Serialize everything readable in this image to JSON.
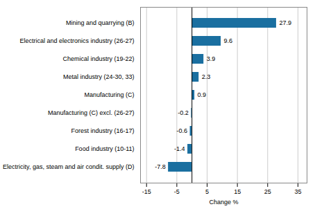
{
  "chart_data": {
    "type": "bar",
    "orientation": "horizontal",
    "categories": [
      "Electricity, gas, steam and air condit. supply (D)",
      "Food industry (10-11)",
      "Forest industry (16-17)",
      "Manufacturing (C) excl. (26-27)",
      "Manufacturing (C)",
      "Metal industry (24-30, 33)",
      "Chemical industry (19-22)",
      "Electrical and electronics industry (26-27)",
      "Mining and quarrying (B)"
    ],
    "values": [
      -7.8,
      -1.4,
      -0.6,
      -0.2,
      0.9,
      2.3,
      3.9,
      9.6,
      27.9
    ],
    "color": "#1a6fa0",
    "xlim": [
      -17,
      38
    ],
    "xticks": [
      -15,
      -5,
      5,
      15,
      25,
      35
    ],
    "xlabel": "Change %",
    "grid": true,
    "data_labels": true
  }
}
